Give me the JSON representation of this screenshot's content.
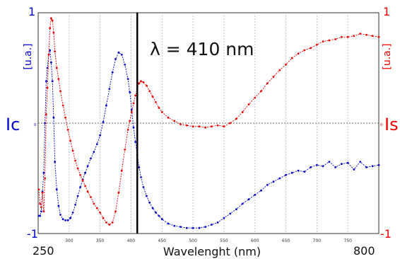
{
  "chart_data": {
    "type": "line",
    "title": "",
    "xlabel": "Wavelenght (nm)",
    "xlim": [
      250,
      800
    ],
    "x_tick_labels": [
      "300",
      "350",
      "400",
      "450",
      "500",
      "550",
      "600",
      "650",
      "700",
      "750"
    ],
    "x_end_labels": {
      "left": "250",
      "right": "800"
    },
    "annotation": {
      "text": "λ = 410 nm",
      "x": 410
    },
    "left_axis": {
      "label": "Ic",
      "unit": "[u.a.]",
      "top_label": "1",
      "bottom_label": "-1",
      "zero_label": "0",
      "ylim": [
        -1,
        1
      ],
      "color": "#0000cc"
    },
    "right_axis": {
      "label": "Is",
      "unit": "[u.a.]",
      "top_label": "1",
      "bottom_label": "-1",
      "zero_label": "0",
      "ylim": [
        -1,
        1
      ],
      "color": "#ee0000"
    },
    "grid": true,
    "series": [
      {
        "axis": "left",
        "color": "#0000cc",
        "x": [
          251,
          253,
          255,
          257,
          259,
          261,
          263,
          265,
          267,
          269,
          271,
          273,
          275,
          277,
          280,
          283,
          286,
          290,
          294,
          298,
          302,
          306,
          310,
          314,
          318,
          322,
          326,
          330,
          335,
          340,
          345,
          350,
          355,
          360,
          365,
          370,
          375,
          380,
          385,
          390,
          395,
          398,
          401,
          404,
          407,
          410,
          413,
          416,
          420,
          425,
          430,
          435,
          440,
          445,
          450,
          460,
          470,
          480,
          490,
          500,
          510,
          520,
          530,
          540,
          550,
          560,
          570,
          580,
          590,
          600,
          610,
          620,
          630,
          640,
          650,
          660,
          670,
          680,
          690,
          700,
          710,
          720,
          730,
          740,
          750,
          760,
          770,
          780,
          790,
          800
        ],
        "values": [
          -0.84,
          -0.84,
          -0.8,
          -0.62,
          -0.45,
          0.0,
          0.38,
          0.5,
          0.62,
          0.66,
          0.55,
          0.38,
          0.05,
          -0.35,
          -0.6,
          -0.75,
          -0.83,
          -0.87,
          -0.88,
          -0.88,
          -0.86,
          -0.81,
          -0.74,
          -0.66,
          -0.58,
          -0.51,
          -0.45,
          -0.39,
          -0.32,
          -0.26,
          -0.19,
          -0.11,
          0.01,
          0.16,
          0.31,
          0.46,
          0.58,
          0.64,
          0.62,
          0.53,
          0.4,
          0.28,
          0.12,
          -0.04,
          -0.17,
          -0.29,
          -0.4,
          -0.49,
          -0.58,
          -0.66,
          -0.72,
          -0.77,
          -0.81,
          -0.84,
          -0.87,
          -0.91,
          -0.93,
          -0.94,
          -0.95,
          -0.95,
          -0.95,
          -0.94,
          -0.92,
          -0.9,
          -0.86,
          -0.82,
          -0.78,
          -0.73,
          -0.69,
          -0.65,
          -0.61,
          -0.56,
          -0.53,
          -0.5,
          -0.47,
          -0.45,
          -0.43,
          -0.44,
          -0.4,
          -0.38,
          -0.39,
          -0.35,
          -0.4,
          -0.37,
          -0.36,
          -0.42,
          -0.35,
          -0.4,
          -0.39,
          -0.38
        ]
      },
      {
        "axis": "right",
        "color": "#ee0000",
        "x": [
          251,
          253,
          255,
          257,
          259,
          261,
          263,
          265,
          267,
          269,
          271,
          273,
          275,
          277,
          280,
          283,
          286,
          290,
          294,
          298,
          302,
          306,
          310,
          314,
          318,
          322,
          326,
          330,
          335,
          340,
          345,
          350,
          355,
          360,
          365,
          370,
          375,
          380,
          385,
          390,
          395,
          398,
          401,
          404,
          407,
          410,
          413,
          416,
          420,
          425,
          430,
          435,
          440,
          445,
          450,
          460,
          470,
          480,
          490,
          500,
          510,
          520,
          530,
          540,
          550,
          560,
          570,
          580,
          590,
          600,
          610,
          620,
          630,
          640,
          650,
          660,
          670,
          680,
          690,
          700,
          710,
          720,
          730,
          740,
          750,
          760,
          770,
          780,
          790,
          800
        ],
        "values": [
          -0.6,
          -0.73,
          -0.76,
          -0.63,
          -0.8,
          -0.5,
          0.08,
          0.32,
          0.62,
          0.86,
          0.95,
          0.93,
          0.82,
          0.65,
          0.5,
          0.4,
          0.29,
          0.16,
          0.05,
          -0.06,
          -0.16,
          -0.25,
          -0.34,
          -0.41,
          -0.47,
          -0.52,
          -0.57,
          -0.62,
          -0.67,
          -0.73,
          -0.77,
          -0.81,
          -0.86,
          -0.9,
          -0.92,
          -0.9,
          -0.8,
          -0.63,
          -0.43,
          -0.24,
          -0.06,
          0.02,
          0.1,
          0.18,
          0.25,
          0.31,
          0.36,
          0.38,
          0.37,
          0.34,
          0.29,
          0.24,
          0.19,
          0.14,
          0.1,
          0.05,
          0.02,
          -0.01,
          -0.02,
          -0.03,
          -0.03,
          -0.04,
          -0.03,
          -0.02,
          -0.03,
          0.0,
          0.04,
          0.1,
          0.17,
          0.23,
          0.29,
          0.36,
          0.42,
          0.48,
          0.53,
          0.59,
          0.63,
          0.66,
          0.68,
          0.71,
          0.74,
          0.75,
          0.76,
          0.78,
          0.78,
          0.79,
          0.81,
          0.8,
          0.79,
          0.78
        ]
      }
    ]
  }
}
